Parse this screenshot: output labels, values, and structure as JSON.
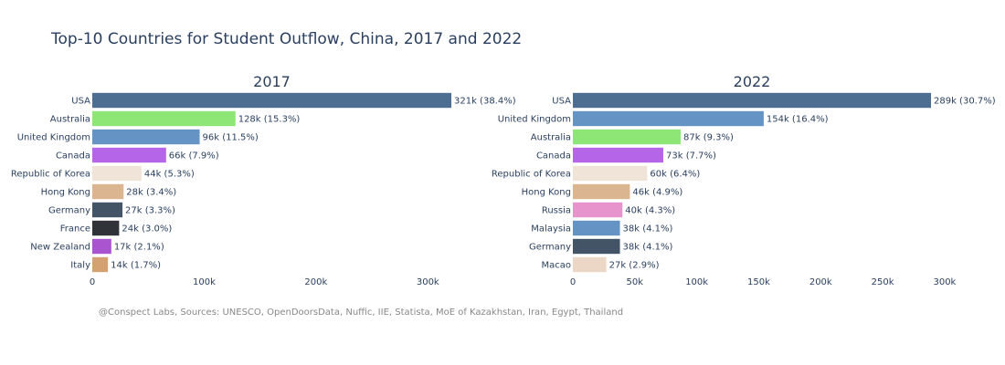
{
  "title": "Top-10 Countries for Student Outflow, China, 2017 and 2022",
  "source": "@Conspect Labs, Sources: UNESCO, OpenDoorsData, Nuffic, IIE, Statista, MoE of Kazakhstan, Iran, Egypt, Thailand",
  "chart_data": [
    {
      "type": "bar",
      "orientation": "horizontal",
      "title": "2017",
      "xlim": [
        0,
        321
      ],
      "xticks": [
        0,
        100,
        200,
        300
      ],
      "xtick_labels": [
        "0",
        "100k",
        "200k",
        "300k"
      ],
      "categories": [
        "USA",
        "Australia",
        "United Kingdom",
        "Canada",
        "Republic of Korea",
        "Hong Kong",
        "Germany",
        "France",
        "New Zealand",
        "Italy"
      ],
      "values": [
        321,
        128,
        96,
        66,
        44,
        28,
        27,
        24,
        17,
        14
      ],
      "labels": [
        "321k (38.4%)",
        "128k (15.3%)",
        "96k (11.5%)",
        "66k (7.9%)",
        "44k (5.3%)",
        "28k (3.4%)",
        "27k (3.3%)",
        "24k (3.0%)",
        "17k (2.1%)",
        "14k (1.7%)"
      ],
      "colors": [
        "#4d6e91",
        "#8ee676",
        "#6594c4",
        "#b565e8",
        "#f0e4d9",
        "#dab590",
        "#435467",
        "#303337",
        "#aa55cf",
        "#d4a272"
      ]
    },
    {
      "type": "bar",
      "orientation": "horizontal",
      "title": "2022",
      "xlim": [
        0,
        289
      ],
      "xticks": [
        0,
        50,
        100,
        150,
        200,
        250,
        300
      ],
      "xtick_labels": [
        "0",
        "50k",
        "100k",
        "150k",
        "200k",
        "250k",
        "300k"
      ],
      "categories": [
        "USA",
        "United Kingdom",
        "Australia",
        "Canada",
        "Republic of Korea",
        "Hong Kong",
        "Russia",
        "Malaysia",
        "Germany",
        "Macao"
      ],
      "values": [
        289,
        154,
        87,
        73,
        60,
        46,
        40,
        38,
        38,
        27
      ],
      "labels": [
        "289k (30.7%)",
        "154k (16.4%)",
        "87k (9.3%)",
        "73k (7.7%)",
        "60k (6.4%)",
        "46k (4.9%)",
        "40k (4.3%)",
        "38k (4.1%)",
        "38k (4.1%)",
        "27k (2.9%)"
      ],
      "colors": [
        "#4d6e91",
        "#6594c4",
        "#8ee676",
        "#b565e8",
        "#f0e4d9",
        "#dab590",
        "#e894cc",
        "#6594c4",
        "#435467",
        "#ecd6c5"
      ]
    }
  ]
}
